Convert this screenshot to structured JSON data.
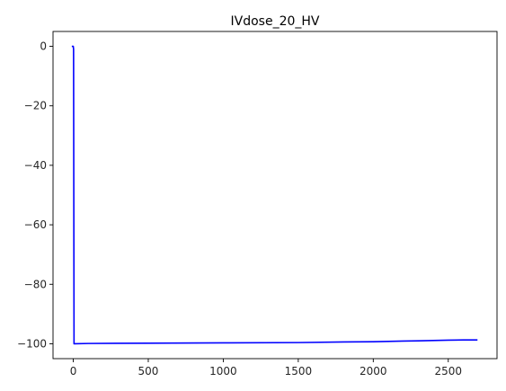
{
  "chart_data": {
    "type": "line",
    "title": "IVdose_20_HV",
    "xlabel": "",
    "ylabel": "",
    "xlim": [
      -135,
      2825
    ],
    "ylim": [
      -105,
      5
    ],
    "grid": false,
    "x_ticks": [
      0,
      500,
      1000,
      1500,
      2000,
      2500
    ],
    "x_tick_labels": [
      "0",
      "500",
      "1000",
      "1500",
      "2000",
      "2500"
    ],
    "y_ticks": [
      0,
      -20,
      -40,
      -60,
      -80,
      -100
    ],
    "y_tick_labels": [
      "0",
      "−20",
      "−40",
      "−60",
      "−80",
      "−100"
    ],
    "series": [
      {
        "color": "#0000ff",
        "x": [
          -5,
          0,
          2,
          5,
          10,
          100,
          500,
          1000,
          1500,
          1800,
          2000,
          2200,
          2300,
          2400,
          2500,
          2600,
          2690
        ],
        "y": [
          0,
          0,
          -1,
          -100,
          -100,
          -99.9,
          -99.8,
          -99.7,
          -99.6,
          -99.4,
          -99.3,
          -99.1,
          -99.0,
          -98.9,
          -98.8,
          -98.7,
          -98.7
        ]
      }
    ]
  }
}
